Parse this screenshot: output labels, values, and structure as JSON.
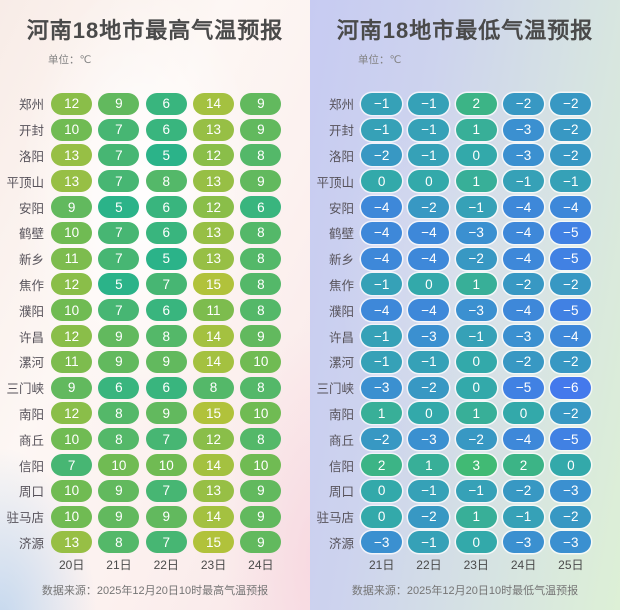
{
  "chart_data": [
    {
      "type": "heatmap",
      "title": "河南18地市最高气温预报",
      "unit": "单位：℃",
      "categories": [
        "20日",
        "21日",
        "22日",
        "23日",
        "24日"
      ],
      "series": [
        {
          "name": "郑州",
          "values": [
            12,
            9,
            6,
            14,
            9
          ]
        },
        {
          "name": "开封",
          "values": [
            10,
            7,
            6,
            13,
            9
          ]
        },
        {
          "name": "洛阳",
          "values": [
            13,
            7,
            5,
            12,
            8
          ]
        },
        {
          "name": "平顶山",
          "values": [
            13,
            7,
            8,
            13,
            9
          ]
        },
        {
          "name": "安阳",
          "values": [
            9,
            5,
            6,
            12,
            6
          ]
        },
        {
          "name": "鹤壁",
          "values": [
            10,
            7,
            6,
            13,
            8
          ]
        },
        {
          "name": "新乡",
          "values": [
            11,
            7,
            5,
            13,
            8
          ]
        },
        {
          "name": "焦作",
          "values": [
            12,
            5,
            7,
            15,
            8
          ]
        },
        {
          "name": "濮阳",
          "values": [
            10,
            7,
            6,
            11,
            8
          ]
        },
        {
          "name": "许昌",
          "values": [
            12,
            9,
            8,
            14,
            9
          ]
        },
        {
          "name": "漯河",
          "values": [
            11,
            9,
            9,
            14,
            10
          ]
        },
        {
          "name": "三门峡",
          "values": [
            9,
            6,
            6,
            8,
            8
          ]
        },
        {
          "name": "南阳",
          "values": [
            12,
            8,
            9,
            15,
            10
          ]
        },
        {
          "name": "商丘",
          "values": [
            10,
            8,
            7,
            12,
            8
          ]
        },
        {
          "name": "信阳",
          "values": [
            7,
            10,
            10,
            14,
            10
          ]
        },
        {
          "name": "周口",
          "values": [
            10,
            9,
            7,
            13,
            9
          ]
        },
        {
          "name": "驻马店",
          "values": [
            10,
            9,
            9,
            14,
            9
          ]
        },
        {
          "name": "济源",
          "values": [
            13,
            8,
            7,
            15,
            9
          ]
        }
      ],
      "source": "数据来源：2025年12月20日10时最高气温预报",
      "color_scale_anchors": [
        [
          5,
          "#2bb389"
        ],
        [
          10,
          "#70bb53"
        ],
        [
          15,
          "#b1c23b"
        ]
      ]
    },
    {
      "type": "heatmap",
      "title": "河南18地市最低气温预报",
      "unit": "单位：℃",
      "categories": [
        "21日",
        "22日",
        "23日",
        "24日",
        "25日"
      ],
      "series": [
        {
          "name": "郑州",
          "values": [
            -1,
            -1,
            2,
            -2,
            -2
          ]
        },
        {
          "name": "开封",
          "values": [
            -1,
            -1,
            1,
            -3,
            -2
          ]
        },
        {
          "name": "洛阳",
          "values": [
            -2,
            -1,
            0,
            -3,
            -2
          ]
        },
        {
          "name": "平顶山",
          "values": [
            0,
            0,
            1,
            -1,
            -1
          ]
        },
        {
          "name": "安阳",
          "values": [
            -4,
            -2,
            -1,
            -4,
            -4
          ]
        },
        {
          "name": "鹤壁",
          "values": [
            -4,
            -4,
            -3,
            -4,
            -5
          ]
        },
        {
          "name": "新乡",
          "values": [
            -4,
            -4,
            -2,
            -4,
            -5
          ]
        },
        {
          "name": "焦作",
          "values": [
            -1,
            0,
            1,
            -2,
            -2
          ]
        },
        {
          "name": "濮阳",
          "values": [
            -4,
            -4,
            -3,
            -4,
            -5
          ]
        },
        {
          "name": "许昌",
          "values": [
            -1,
            -3,
            -1,
            -3,
            -4
          ]
        },
        {
          "name": "漯河",
          "values": [
            -1,
            -1,
            0,
            -2,
            -2
          ]
        },
        {
          "name": "三门峡",
          "values": [
            -3,
            -2,
            0,
            -5,
            -6
          ]
        },
        {
          "name": "南阳",
          "values": [
            1,
            0,
            1,
            0,
            -2
          ]
        },
        {
          "name": "商丘",
          "values": [
            -2,
            -3,
            -2,
            -4,
            -5
          ]
        },
        {
          "name": "信阳",
          "values": [
            2,
            1,
            3,
            2,
            0
          ]
        },
        {
          "name": "周口",
          "values": [
            0,
            -1,
            -1,
            -2,
            -3
          ]
        },
        {
          "name": "驻马店",
          "values": [
            0,
            -2,
            1,
            -1,
            -2
          ]
        },
        {
          "name": "济源",
          "values": [
            -3,
            -1,
            0,
            -3,
            -3
          ]
        }
      ],
      "source": "数据来源：2025年12月20日10时最低气温预报",
      "color_scale_anchors": [
        [
          -6,
          "#4479ec"
        ],
        [
          -3,
          "#3b90d0"
        ],
        [
          0,
          "#33a9aa"
        ],
        [
          3,
          "#41ba74"
        ]
      ]
    }
  ]
}
